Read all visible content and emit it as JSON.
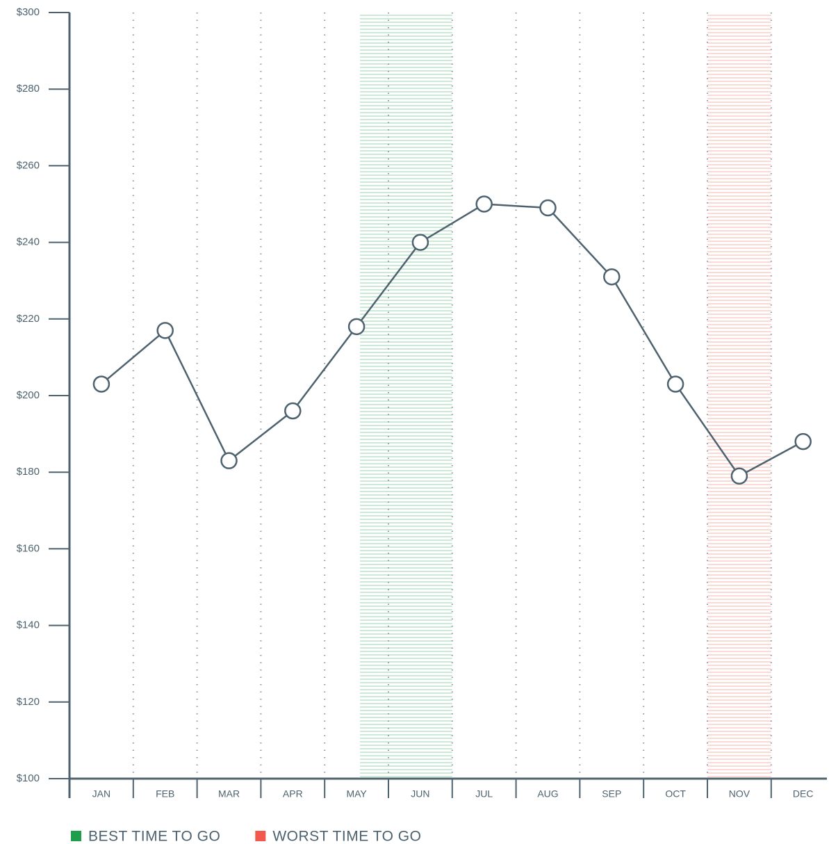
{
  "chart_data": {
    "type": "line",
    "categories": [
      "JAN",
      "FEB",
      "MAR",
      "APR",
      "MAY",
      "JUN",
      "JUL",
      "AUG",
      "SEP",
      "OCT",
      "NOV",
      "DEC"
    ],
    "series": [
      {
        "color": "#4d626e",
        "values": [
          203,
          217,
          183,
          196,
          218,
          240,
          250,
          249,
          231,
          203,
          179,
          188
        ]
      }
    ],
    "ylim": [
      100,
      300
    ],
    "yticks": [
      {
        "value": 100,
        "label": "$100"
      },
      {
        "value": 120,
        "label": "$120"
      },
      {
        "value": 140,
        "label": "$140"
      },
      {
        "value": 160,
        "label": "$160"
      },
      {
        "value": 180,
        "label": "$180"
      },
      {
        "value": 200,
        "label": "$200"
      },
      {
        "value": 220,
        "label": "$220"
      },
      {
        "value": 240,
        "label": "$240"
      },
      {
        "value": 260,
        "label": "$260"
      },
      {
        "value": 280,
        "label": "$280"
      },
      {
        "value": 300,
        "label": "$300"
      }
    ],
    "grid": true,
    "highlights": [
      {
        "name": "BEST TIME TO GO",
        "color": "#1e9e4a",
        "start": "MAY",
        "end": "JUN"
      },
      {
        "name": "WORST TIME TO GO",
        "color": "#f0594b",
        "start": "NOV",
        "end": "NOV"
      }
    ]
  }
}
